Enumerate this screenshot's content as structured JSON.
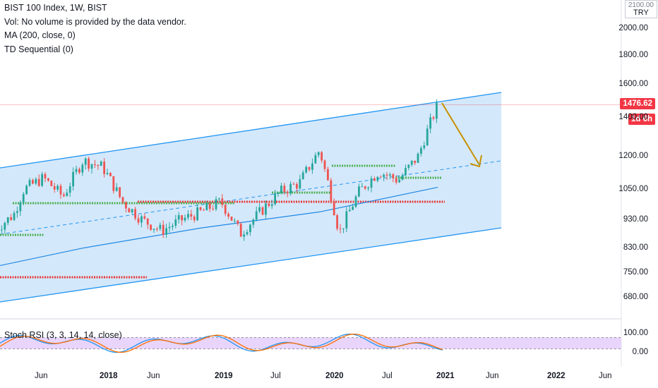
{
  "legend": {
    "title": "BIST 100 Index, 1W, BIST",
    "vol": "Vol: No volume is provided by the data vendor.",
    "ma": "MA (200, close, 0)",
    "td": "TD Sequential (0)"
  },
  "oscillator_label": "Stoch RSI (3, 3, 14, 14, close)",
  "currency": "TRY",
  "currency_top": "2100.00",
  "last_price": "1476.62",
  "countdown": "1d 6h",
  "colors": {
    "channel": "#2196f3",
    "channel_fill": "#cfe6fb",
    "candle_up": "#26a69a",
    "candle_down": "#ef5350",
    "ma": "#1e88e5",
    "support_green": "#4caf50",
    "support_red": "#e53935",
    "arrow": "#c79100",
    "osc_fill": "#e9d5fb",
    "stoch_k": "#2196f3",
    "stoch_d": "#ff6d00"
  },
  "chart_data": [
    {
      "type": "candlestick",
      "title": "BIST 100 Index, 1W, BIST",
      "y_scale": "log",
      "y_ticks": [
        "2000.00",
        "1800.00",
        "1600.00",
        "1400.00",
        "1200.00",
        "1050.00",
        "930.00",
        "830.00",
        "750.00",
        "680.00"
      ],
      "x_ticks": [
        "Jun",
        "2018",
        "Jun",
        "2019",
        "Jul",
        "2020",
        "Jul",
        "2021",
        "Jun",
        "2022",
        "Jun"
      ],
      "bold_x_ticks": [
        "2018",
        "2019",
        "2020",
        "2021",
        "2022"
      ],
      "last_price": 1476.62,
      "series": [
        {
          "name": "BIST 100 Index",
          "approx_close_path": [
            {
              "x": "2017-04",
              "y": 890
            },
            {
              "x": "2017-06",
              "y": 950
            },
            {
              "x": "2017-07",
              "y": 1050
            },
            {
              "x": "2017-09",
              "y": 1100
            },
            {
              "x": "2017-11",
              "y": 1020
            },
            {
              "x": "2018-01",
              "y": 1180
            },
            {
              "x": "2018-03",
              "y": 1150
            },
            {
              "x": "2018-05",
              "y": 1000
            },
            {
              "x": "2018-07",
              "y": 930
            },
            {
              "x": "2018-09",
              "y": 890
            },
            {
              "x": "2018-11",
              "y": 930
            },
            {
              "x": "2019-01",
              "y": 960
            },
            {
              "x": "2019-03",
              "y": 1000
            },
            {
              "x": "2019-05",
              "y": 880
            },
            {
              "x": "2019-07",
              "y": 960
            },
            {
              "x": "2019-09",
              "y": 1040
            },
            {
              "x": "2019-11",
              "y": 1080
            },
            {
              "x": "2020-01",
              "y": 1230
            },
            {
              "x": "2020-03",
              "y": 880
            },
            {
              "x": "2020-05",
              "y": 1040
            },
            {
              "x": "2020-07",
              "y": 1130
            },
            {
              "x": "2020-09",
              "y": 1090
            },
            {
              "x": "2020-11",
              "y": 1200
            },
            {
              "x": "2021-01",
              "y": 1476.62
            }
          ]
        },
        {
          "name": "MA (200, close, 0)",
          "approx_path": [
            {
              "x": "2017-04",
              "y": 770
            },
            {
              "x": "2018-01",
              "y": 830
            },
            {
              "x": "2019-01",
              "y": 900
            },
            {
              "x": "2020-01",
              "y": 960
            },
            {
              "x": "2021-01",
              "y": 1060
            }
          ]
        }
      ],
      "projection_target": 1180
    },
    {
      "type": "line",
      "title": "Stoch RSI (3, 3, 14, 14, close)",
      "y_ticks": [
        "100.00",
        "0.00"
      ],
      "band": [
        20,
        80
      ]
    }
  ]
}
